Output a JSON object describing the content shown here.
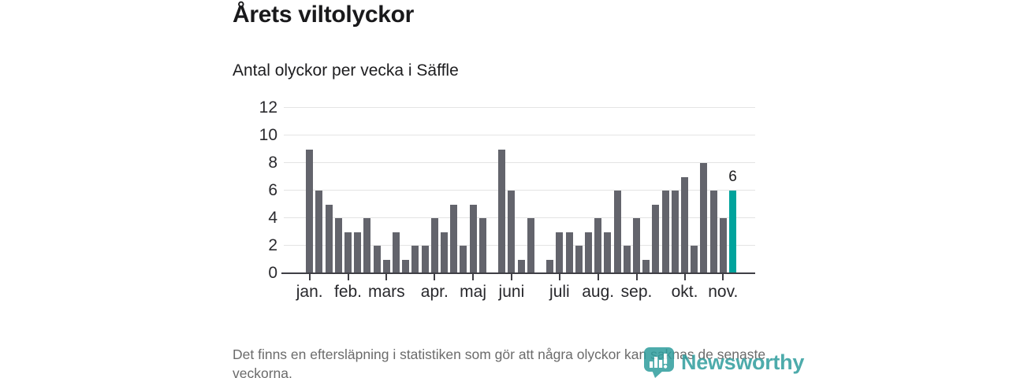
{
  "header": {
    "title": "Årets viltolyckor",
    "subtitle": "Antal olyckor per vecka i Säffle"
  },
  "chart_data": {
    "type": "bar",
    "title": "Årets viltolyckor",
    "subtitle": "Antal olyckor per vecka i Säffle",
    "x_unit": "vecka",
    "y_unit": "antal olyckor",
    "values": [
      9,
      6,
      5,
      4,
      3,
      3,
      4,
      2,
      1,
      3,
      1,
      2,
      2,
      4,
      3,
      5,
      2,
      5,
      4,
      0,
      9,
      6,
      1,
      4,
      0,
      1,
      3,
      3,
      2,
      3,
      4,
      3,
      6,
      2,
      4,
      1,
      5,
      6,
      6,
      7,
      2,
      8,
      6,
      4,
      6
    ],
    "month_ticks": [
      {
        "label": "jan.",
        "week": 0
      },
      {
        "label": "feb.",
        "week": 4
      },
      {
        "label": "mars",
        "week": 8
      },
      {
        "label": "apr.",
        "week": 13
      },
      {
        "label": "maj",
        "week": 17
      },
      {
        "label": "juni",
        "week": 21
      },
      {
        "label": "juli",
        "week": 26
      },
      {
        "label": "aug.",
        "week": 30
      },
      {
        "label": "sep.",
        "week": 34
      },
      {
        "label": "okt.",
        "week": 39
      },
      {
        "label": "nov.",
        "week": 43
      }
    ],
    "yticks": [
      0,
      2,
      4,
      6,
      8,
      10,
      12
    ],
    "ylim": [
      0,
      12
    ],
    "grid": true,
    "legend": false,
    "highlight_last": true,
    "last_value_label": "6",
    "colors": {
      "bar": "#63646C",
      "highlight": "#00A39C",
      "grid": "#E4E4E4",
      "axis": "#3F3F45"
    }
  },
  "footer": {
    "note": "Det finns en eftersläpning i statistiken som gör att några olyckor kan saknas de senaste veckorna."
  },
  "logo": {
    "name": "Newsworthy",
    "icon": "newsworthy-pin-barchart-icon",
    "color": "#2F9D9D"
  }
}
